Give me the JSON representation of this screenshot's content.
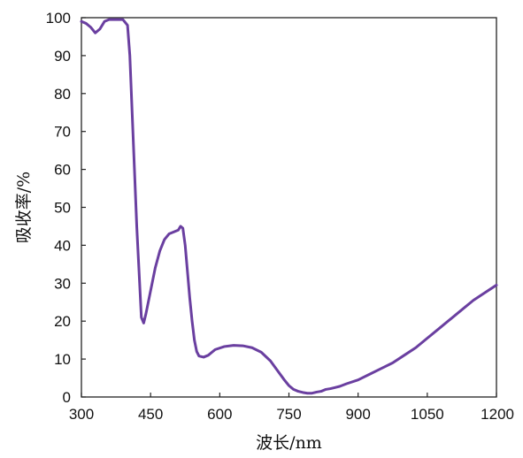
{
  "chart_data": {
    "type": "line",
    "title": "",
    "xlabel": "波长/nm",
    "ylabel": "吸收率/%",
    "xlim": [
      300,
      1200
    ],
    "ylim": [
      0,
      100
    ],
    "xticks": [
      300,
      450,
      600,
      750,
      900,
      1050,
      1200
    ],
    "yticks": [
      0,
      10,
      20,
      30,
      40,
      50,
      60,
      70,
      80,
      90,
      100
    ],
    "xtick_labels": [
      "300",
      "450",
      "600",
      "750",
      "900",
      "1050",
      "1200"
    ],
    "ytick_labels": [
      "0",
      "10",
      "20",
      "30",
      "40",
      "50",
      "60",
      "70",
      "80",
      "90",
      "100"
    ],
    "grid": false,
    "line_color": "#6a3fa0",
    "series": [
      {
        "points": [
          [
            300,
            99
          ],
          [
            310,
            98.5
          ],
          [
            320,
            97.5
          ],
          [
            330,
            96
          ],
          [
            340,
            97
          ],
          [
            350,
            99
          ],
          [
            360,
            99.5
          ],
          [
            375,
            99.5
          ],
          [
            390,
            99.5
          ],
          [
            400,
            98
          ],
          [
            405,
            90
          ],
          [
            410,
            75
          ],
          [
            415,
            60
          ],
          [
            420,
            45
          ],
          [
            425,
            33
          ],
          [
            430,
            21
          ],
          [
            435,
            19.5
          ],
          [
            440,
            22
          ],
          [
            450,
            28
          ],
          [
            460,
            34
          ],
          [
            470,
            38.5
          ],
          [
            480,
            41.5
          ],
          [
            490,
            43
          ],
          [
            500,
            43.5
          ],
          [
            510,
            44
          ],
          [
            515,
            45
          ],
          [
            520,
            44.5
          ],
          [
            525,
            40
          ],
          [
            530,
            33
          ],
          [
            535,
            26
          ],
          [
            540,
            20
          ],
          [
            545,
            15
          ],
          [
            550,
            12
          ],
          [
            555,
            10.8
          ],
          [
            565,
            10.5
          ],
          [
            575,
            11
          ],
          [
            590,
            12.5
          ],
          [
            610,
            13.3
          ],
          [
            630,
            13.6
          ],
          [
            650,
            13.5
          ],
          [
            670,
            13
          ],
          [
            690,
            11.8
          ],
          [
            710,
            9.5
          ],
          [
            725,
            7
          ],
          [
            740,
            4.5
          ],
          [
            750,
            3
          ],
          [
            760,
            2
          ],
          [
            770,
            1.5
          ],
          [
            780,
            1.2
          ],
          [
            790,
            1
          ],
          [
            800,
            1
          ],
          [
            810,
            1.3
          ],
          [
            820,
            1.5
          ],
          [
            830,
            2
          ],
          [
            840,
            2.2
          ],
          [
            850,
            2.5
          ],
          [
            860,
            2.8
          ],
          [
            875,
            3.5
          ],
          [
            900,
            4.5
          ],
          [
            925,
            6
          ],
          [
            950,
            7.5
          ],
          [
            975,
            9
          ],
          [
            1000,
            11
          ],
          [
            1025,
            13
          ],
          [
            1050,
            15.5
          ],
          [
            1075,
            18
          ],
          [
            1100,
            20.5
          ],
          [
            1125,
            23
          ],
          [
            1150,
            25.5
          ],
          [
            1175,
            27.5
          ],
          [
            1200,
            29.5
          ]
        ]
      }
    ]
  }
}
